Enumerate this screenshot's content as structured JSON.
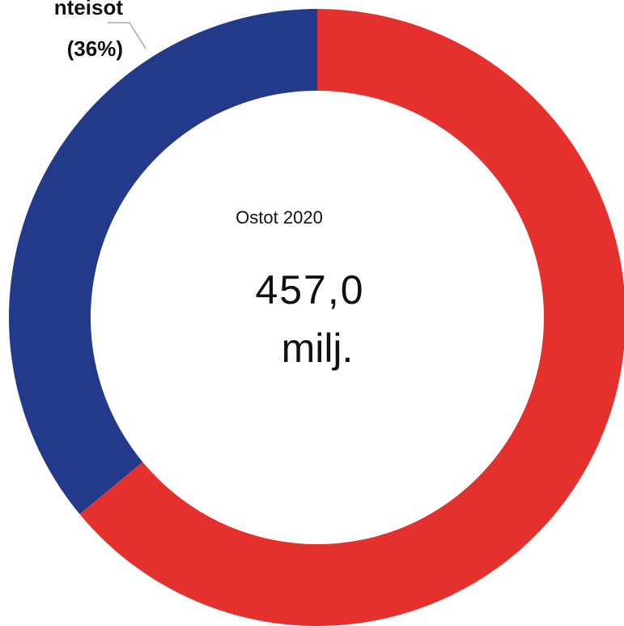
{
  "chart_data": {
    "type": "donut",
    "categories": [
      "nteisot",
      null
    ],
    "values": [
      36,
      64
    ],
    "value_labels": [
      "(36%)",
      null
    ],
    "colors": [
      "#233a8a",
      "#e5312d"
    ],
    "center_title": "Ostot 2020",
    "center_value": "457,0",
    "center_unit": "milj."
  }
}
